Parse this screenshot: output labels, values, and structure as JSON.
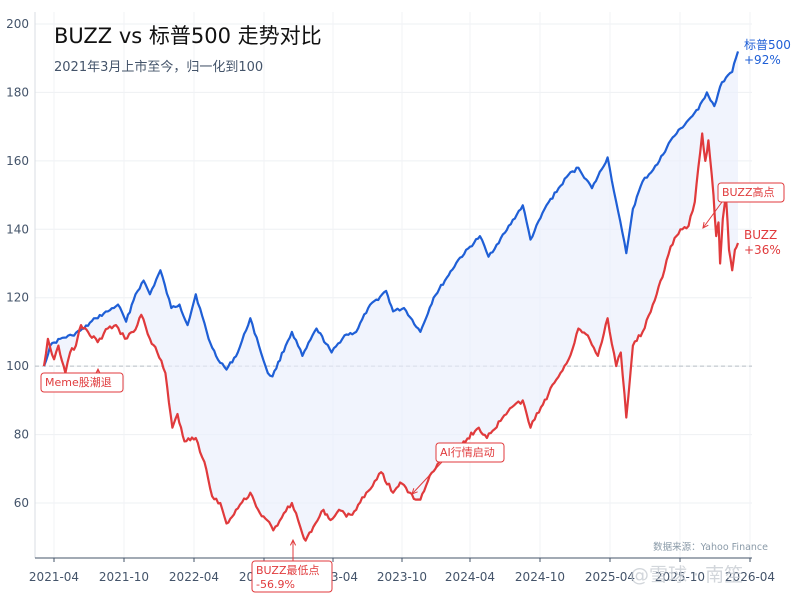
{
  "chart_data": {
    "type": "line",
    "title": "BUZZ vs 标普500 走势对比",
    "subtitle": "2021年3月上市至今，归一化到100",
    "xlabel": "",
    "ylabel": "",
    "x_ticks": [
      "2021-04",
      "2021-10",
      "2022-04",
      "2022-10",
      "2023-04",
      "2023-10",
      "2024-04",
      "2024-10",
      "2025-04",
      "2025-10",
      "2026-04"
    ],
    "y_ticks": [
      60,
      80,
      100,
      120,
      140,
      160,
      180,
      200
    ],
    "ylim": [
      45,
      200
    ],
    "xlim": [
      "2021-03-04",
      "2026-01-20"
    ],
    "reference_line": 100,
    "grid": true,
    "series": [
      {
        "name": "标普500",
        "color": "#1f5fd6",
        "end_label": "标普500\n+92%",
        "points": [
          [
            "2021-03-04",
            100
          ],
          [
            "2021-03-20",
            106
          ],
          [
            "2021-04-15",
            108
          ],
          [
            "2021-05-15",
            109
          ],
          [
            "2021-06-15",
            111
          ],
          [
            "2021-07-15",
            114
          ],
          [
            "2021-08-15",
            116
          ],
          [
            "2021-09-10",
            118
          ],
          [
            "2021-10-01",
            113
          ],
          [
            "2021-10-25",
            121
          ],
          [
            "2021-11-15",
            125
          ],
          [
            "2021-12-01",
            121
          ],
          [
            "2021-12-28",
            128
          ],
          [
            "2022-01-25",
            117
          ],
          [
            "2022-02-15",
            118
          ],
          [
            "2022-03-08",
            112
          ],
          [
            "2022-03-29",
            121
          ],
          [
            "2022-05-01",
            108
          ],
          [
            "2022-05-20",
            103
          ],
          [
            "2022-06-16",
            99
          ],
          [
            "2022-07-15",
            104
          ],
          [
            "2022-08-16",
            114
          ],
          [
            "2022-09-07",
            106
          ],
          [
            "2022-09-30",
            98
          ],
          [
            "2022-10-12",
            97
          ],
          [
            "2022-11-15",
            106
          ],
          [
            "2022-12-01",
            110
          ],
          [
            "2022-12-28",
            103
          ],
          [
            "2023-02-02",
            111
          ],
          [
            "2023-03-13",
            104
          ],
          [
            "2023-04-15",
            109
          ],
          [
            "2023-05-15",
            110
          ],
          [
            "2023-06-15",
            117
          ],
          [
            "2023-07-31",
            122
          ],
          [
            "2023-08-18",
            116
          ],
          [
            "2023-09-15",
            117
          ],
          [
            "2023-10-27",
            110
          ],
          [
            "2023-11-30",
            120
          ],
          [
            "2023-12-29",
            125
          ],
          [
            "2024-02-01",
            131
          ],
          [
            "2024-03-28",
            138
          ],
          [
            "2024-04-19",
            132
          ],
          [
            "2024-05-31",
            139
          ],
          [
            "2024-07-16",
            147
          ],
          [
            "2024-08-05",
            137
          ],
          [
            "2024-09-15",
            147
          ],
          [
            "2024-11-11",
            156
          ],
          [
            "2024-12-06",
            158
          ],
          [
            "2025-01-10",
            152
          ],
          [
            "2025-02-19",
            161
          ],
          [
            "2025-03-13",
            148
          ],
          [
            "2025-04-08",
            133
          ],
          [
            "2025-04-25",
            146
          ],
          [
            "2025-05-20",
            154
          ],
          [
            "2025-06-27",
            159
          ],
          [
            "2025-07-31",
            166
          ],
          [
            "2025-09-15",
            172
          ],
          [
            "2025-10-10",
            175
          ],
          [
            "2025-11-01",
            180
          ],
          [
            "2025-11-20",
            176
          ],
          [
            "2025-12-10",
            183
          ],
          [
            "2026-01-05",
            186
          ],
          [
            "2026-01-20",
            192
          ]
        ]
      },
      {
        "name": "BUZZ",
        "color": "#e03a3c",
        "end_label": "BUZZ\n+36%",
        "points": [
          [
            "2021-03-04",
            100
          ],
          [
            "2021-03-14",
            108
          ],
          [
            "2021-03-30",
            102
          ],
          [
            "2021-04-10",
            106
          ],
          [
            "2021-04-28",
            98
          ],
          [
            "2021-05-10",
            104
          ],
          [
            "2021-05-25",
            106
          ],
          [
            "2021-06-07",
            112
          ],
          [
            "2021-06-25",
            110
          ],
          [
            "2021-07-20",
            107
          ],
          [
            "2021-08-15",
            111
          ],
          [
            "2021-09-05",
            112
          ],
          [
            "2021-09-28",
            108
          ],
          [
            "2021-10-20",
            110
          ],
          [
            "2021-11-09",
            115
          ],
          [
            "2021-12-01",
            108
          ],
          [
            "2021-12-20",
            104
          ],
          [
            "2022-01-10",
            98
          ],
          [
            "2022-01-28",
            82
          ],
          [
            "2022-02-10",
            86
          ],
          [
            "2022-02-28",
            78
          ],
          [
            "2022-03-29",
            79
          ],
          [
            "2022-04-20",
            72
          ],
          [
            "2022-05-10",
            62
          ],
          [
            "2022-05-31",
            60
          ],
          [
            "2022-06-16",
            54
          ],
          [
            "2022-07-10",
            58
          ],
          [
            "2022-08-16",
            63
          ],
          [
            "2022-09-10",
            57
          ],
          [
            "2022-09-28",
            55
          ],
          [
            "2022-10-14",
            52
          ],
          [
            "2022-11-10",
            57
          ],
          [
            "2022-12-01",
            60
          ],
          [
            "2022-12-28",
            51
          ],
          [
            "2023-01-05",
            49
          ],
          [
            "2023-01-25",
            53
          ],
          [
            "2023-02-20",
            58
          ],
          [
            "2023-03-10",
            55
          ],
          [
            "2023-04-01",
            58
          ],
          [
            "2023-04-20",
            56
          ],
          [
            "2023-05-15",
            58
          ],
          [
            "2023-06-10",
            63
          ],
          [
            "2023-07-18",
            69
          ],
          [
            "2023-08-18",
            63
          ],
          [
            "2023-09-05",
            66
          ],
          [
            "2023-09-30",
            63
          ],
          [
            "2023-10-15",
            61
          ],
          [
            "2023-10-27",
            61
          ],
          [
            "2023-11-20",
            68
          ],
          [
            "2023-12-15",
            72
          ],
          [
            "2024-01-10",
            74
          ],
          [
            "2024-02-15",
            78
          ],
          [
            "2024-03-25",
            82
          ],
          [
            "2024-04-15",
            79
          ],
          [
            "2024-05-20",
            84
          ],
          [
            "2024-06-18",
            88
          ],
          [
            "2024-07-16",
            90
          ],
          [
            "2024-08-05",
            82
          ],
          [
            "2024-09-01",
            88
          ],
          [
            "2024-10-10",
            96
          ],
          [
            "2024-11-11",
            102
          ],
          [
            "2024-12-06",
            111
          ],
          [
            "2024-12-30",
            109
          ],
          [
            "2025-01-25",
            103
          ],
          [
            "2025-02-19",
            114
          ],
          [
            "2025-03-13",
            100
          ],
          [
            "2025-03-25",
            104
          ],
          [
            "2025-04-08",
            85
          ],
          [
            "2025-04-25",
            106
          ],
          [
            "2025-05-20",
            110
          ],
          [
            "2025-06-15",
            118
          ],
          [
            "2025-07-10",
            126
          ],
          [
            "2025-07-31",
            135
          ],
          [
            "2025-08-25",
            140
          ],
          [
            "2025-09-15",
            141
          ],
          [
            "2025-10-01",
            148
          ],
          [
            "2025-10-10",
            158
          ],
          [
            "2025-10-20",
            168
          ],
          [
            "2025-10-28",
            160
          ],
          [
            "2025-11-05",
            166
          ],
          [
            "2025-11-18",
            150
          ],
          [
            "2025-11-25",
            138
          ],
          [
            "2025-12-01",
            142
          ],
          [
            "2025-12-05",
            130
          ],
          [
            "2025-12-12",
            143
          ],
          [
            "2025-12-20",
            150
          ],
          [
            "2025-12-28",
            134
          ],
          [
            "2026-01-05",
            128
          ],
          [
            "2026-01-12",
            134
          ],
          [
            "2026-01-20",
            136
          ]
        ]
      }
    ],
    "annotations": [
      {
        "text": "Meme股潮退",
        "x": "2021-04-28",
        "y": 98
      },
      {
        "text": "BUZZ最低点\n-56.9%",
        "x": "2023-01-05",
        "y": 49
      },
      {
        "text": "AI行情启动",
        "x": "2023-10-27",
        "y": 61
      },
      {
        "text": "BUZZ高点",
        "x": "2025-11-25",
        "y": 140
      }
    ],
    "source": "数据来源：Yahoo Finance",
    "watermark": "@雪球 · 南笙"
  }
}
